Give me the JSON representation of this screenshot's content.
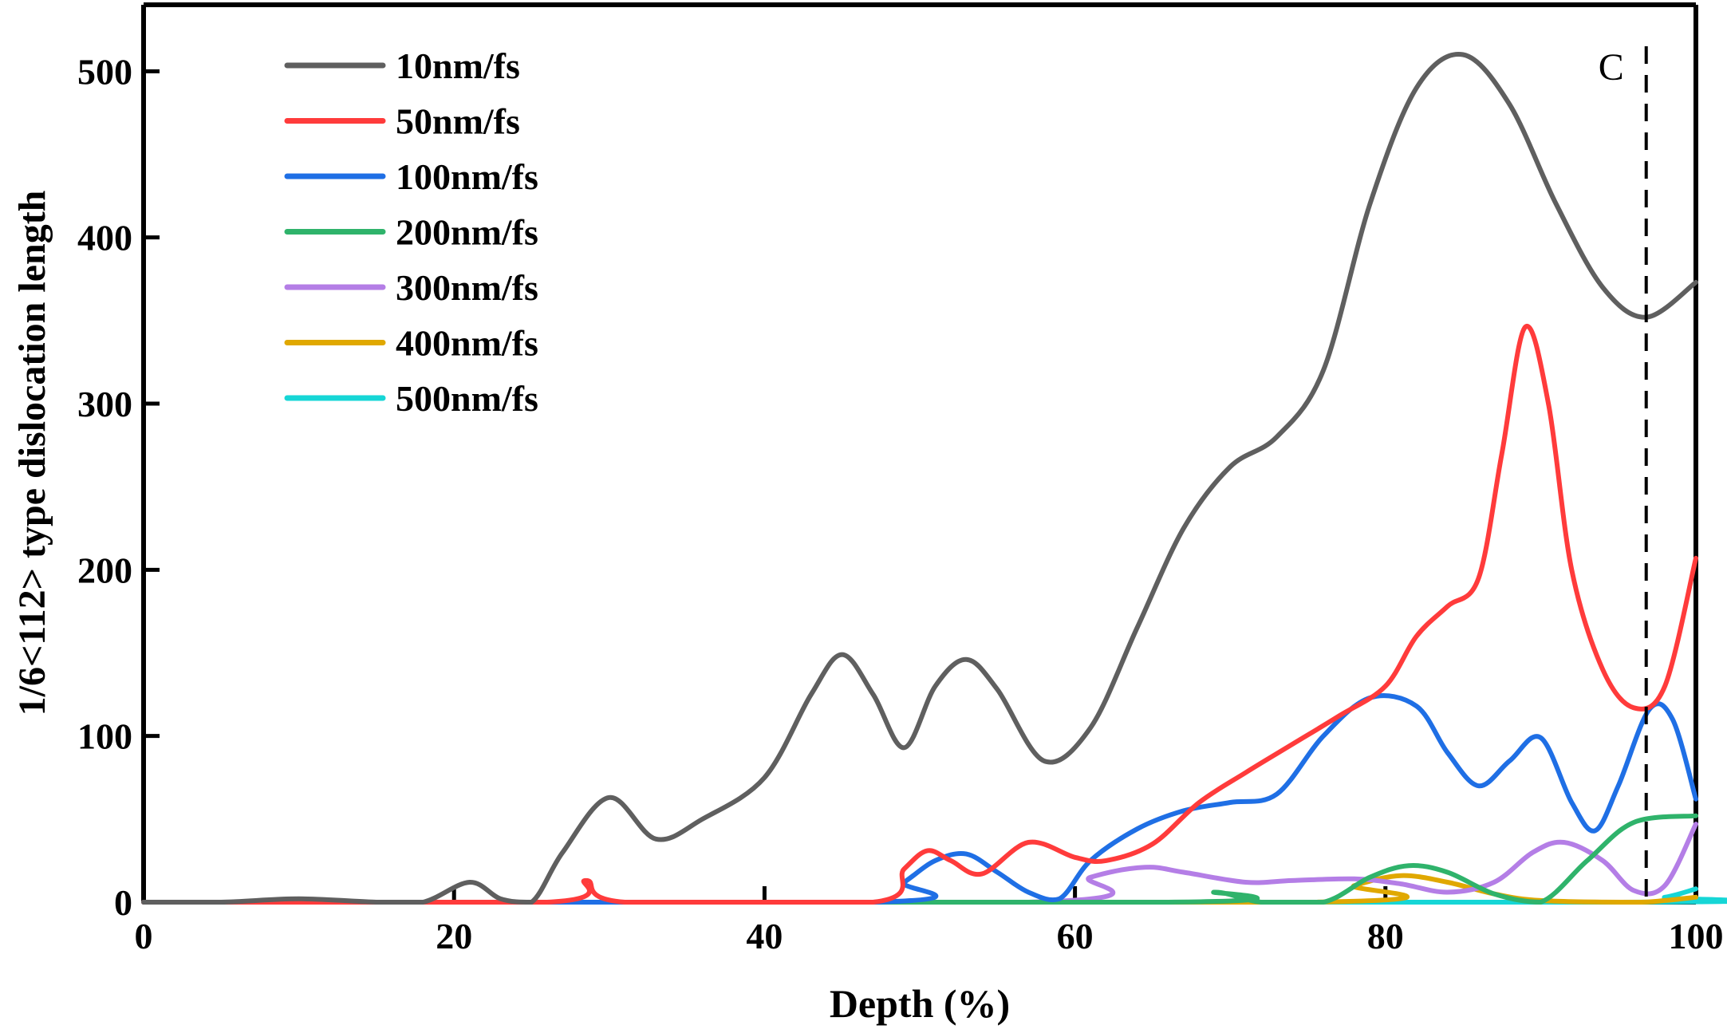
{
  "chart_data": {
    "type": "line",
    "title": "",
    "xlabel": "Depth (%)",
    "ylabel": "1/6<112> type dislocation length",
    "xlim": [
      0,
      100
    ],
    "ylim": [
      0,
      540
    ],
    "xticks": [
      0,
      20,
      40,
      60,
      80,
      100
    ],
    "xtick_labels": [
      "0",
      "20",
      "40",
      "60",
      "80",
      "100"
    ],
    "yticks": [
      0,
      100,
      200,
      300,
      400,
      500
    ],
    "ytick_labels": [
      "0",
      "100",
      "200",
      "300",
      "400",
      "500"
    ],
    "grid": false,
    "legend_position": "top-left",
    "annotation": {
      "label": "C",
      "x": 96.8,
      "style": "dashed vertical line"
    },
    "series": [
      {
        "name": "10nm/fs",
        "color": "#5f5f5f",
        "x": [
          0,
          5,
          10,
          15,
          18,
          21,
          23,
          25,
          27,
          30,
          33,
          36,
          40,
          43,
          45,
          47,
          49,
          51,
          53,
          55,
          58,
          61,
          64,
          67,
          70,
          73,
          76,
          79,
          82,
          85,
          88,
          91,
          94,
          96.8,
          100
        ],
        "y": [
          0,
          0,
          2,
          0,
          0,
          12,
          2,
          0,
          30,
          63,
          38,
          50,
          75,
          125,
          149,
          125,
          93,
          130,
          146,
          128,
          85,
          105,
          165,
          225,
          262,
          280,
          320,
          420,
          490,
          510,
          480,
          420,
          370,
          352,
          373
        ]
      },
      {
        "name": "50nm/fs",
        "color": "#ff3b3b",
        "x": [
          0,
          26,
          28.5,
          31,
          47,
          49,
          50.5,
          52,
          54,
          57,
          60,
          62,
          65,
          68,
          71,
          74,
          77,
          80,
          82,
          84,
          86,
          87.5,
          89,
          90.5,
          92,
          94,
          96,
          98,
          100
        ],
        "y": [
          0,
          0,
          13,
          0,
          0,
          20,
          31,
          25,
          17,
          36,
          27,
          25,
          35,
          60,
          78,
          95,
          112,
          130,
          160,
          178,
          195,
          270,
          346,
          300,
          200,
          140,
          117,
          130,
          207
        ]
      },
      {
        "name": "100nm/fs",
        "color": "#1f6fe5",
        "x": [
          0,
          47,
          49,
          51,
          53,
          55,
          57,
          59,
          61,
          64,
          67,
          70,
          73,
          76,
          79,
          82,
          84,
          86,
          88,
          90,
          92,
          93.5,
          95,
          97,
          98.5,
          100
        ],
        "y": [
          0,
          0,
          12,
          25,
          29,
          18,
          6,
          2,
          25,
          44,
          55,
          60,
          65,
          100,
          123,
          118,
          90,
          70,
          85,
          99,
          60,
          43,
          70,
          116,
          110,
          62
        ]
      },
      {
        "name": "200nm/fs",
        "color": "#2fb36b",
        "x": [
          0,
          66,
          69,
          72,
          76,
          79,
          81.5,
          84,
          87,
          90,
          93,
          96,
          100
        ],
        "y": [
          0,
          0,
          6,
          0,
          0,
          15,
          22,
          18,
          5,
          0,
          25,
          48,
          52
        ]
      },
      {
        "name": "300nm/fs",
        "color": "#b47ee6",
        "x": [
          0,
          57,
          61,
          64.5,
          67,
          71,
          74,
          78,
          81,
          84,
          87,
          89.5,
          91.5,
          94,
          96,
          98,
          100
        ],
        "y": [
          0,
          0,
          15,
          21,
          18,
          12,
          13,
          14,
          11,
          6,
          12,
          30,
          36,
          25,
          7,
          10,
          47
        ]
      },
      {
        "name": "400nm/fs",
        "color": "#e0a800",
        "x": [
          0,
          75,
          78,
          81,
          84,
          87,
          90,
          96,
          98,
          100
        ],
        "y": [
          0,
          0,
          10,
          16,
          12,
          5,
          1,
          0,
          1,
          3
        ]
      },
      {
        "name": "500nm/fs",
        "color": "#16d6d6",
        "x": [
          0,
          95,
          98,
          100
        ],
        "y": [
          0,
          0,
          3,
          8
        ]
      }
    ]
  }
}
